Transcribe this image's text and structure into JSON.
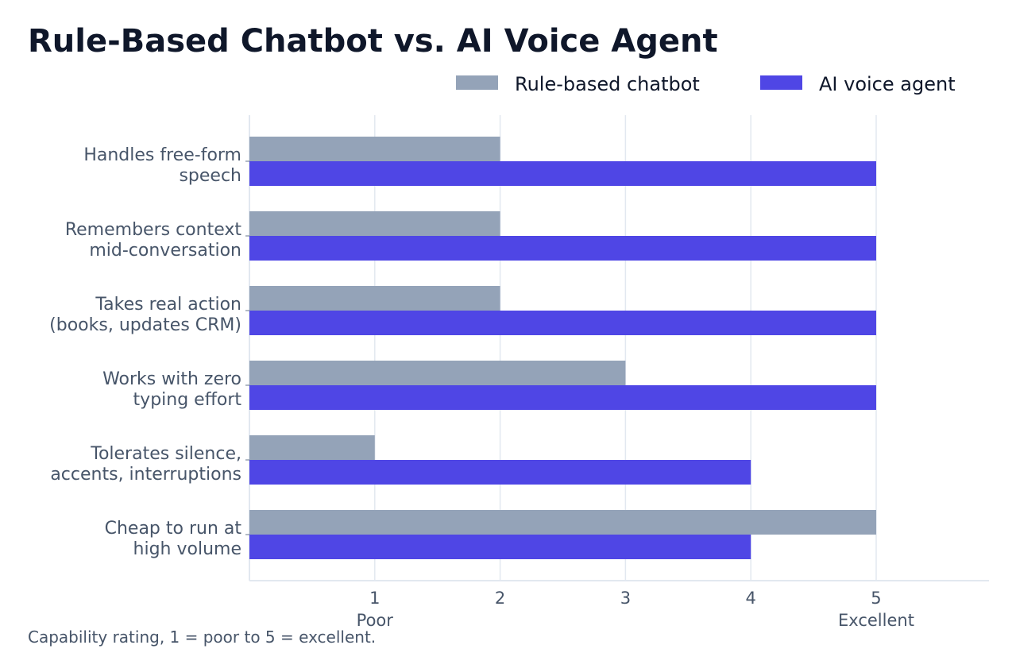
{
  "chart_data": {
    "type": "bar",
    "orientation": "horizontal",
    "title": "Rule-Based Chatbot vs. AI Voice Agent",
    "caption": "Capability rating, 1 = poor to 5 = excellent.",
    "categories": [
      [
        "Handles free-form",
        "speech"
      ],
      [
        "Remembers context",
        "mid-conversation"
      ],
      [
        "Takes real action",
        "(books, updates CRM)"
      ],
      [
        "Works with zero",
        "typing effort"
      ],
      [
        "Tolerates silence,",
        "accents, interruptions"
      ],
      [
        "Cheap to run at",
        "high volume"
      ]
    ],
    "series": [
      {
        "name": "Rule-based chatbot",
        "color": "#94a3b8",
        "values": [
          2,
          2,
          2,
          3,
          1,
          5
        ]
      },
      {
        "name": "AI voice agent",
        "color": "#4f46e5",
        "values": [
          5,
          5,
          5,
          5,
          4,
          4
        ]
      }
    ],
    "xlim": [
      0,
      5.9
    ],
    "xticks": [
      {
        "value": 1,
        "label": "1",
        "sublabel": "Poor"
      },
      {
        "value": 2,
        "label": "2",
        "sublabel": ""
      },
      {
        "value": 3,
        "label": "3",
        "sublabel": ""
      },
      {
        "value": 4,
        "label": "4",
        "sublabel": ""
      },
      {
        "value": 5,
        "label": "5",
        "sublabel": "Excellent"
      }
    ],
    "grid": true,
    "legend_position": "top-right"
  }
}
